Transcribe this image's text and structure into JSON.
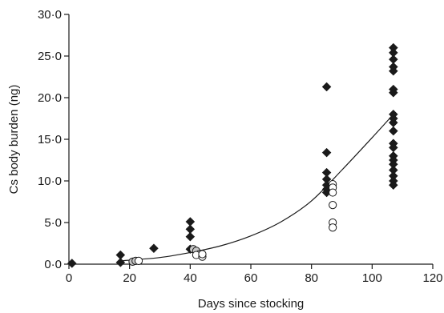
{
  "chart_data": {
    "type": "scatter",
    "xlabel": "Days since stocking",
    "ylabel": "Cs body burden (ng)",
    "xlim": [
      0,
      120
    ],
    "ylim": [
      0,
      30
    ],
    "x_ticks": [
      {
        "value": 0,
        "label": "0"
      },
      {
        "value": 20,
        "label": "20"
      },
      {
        "value": 40,
        "label": "40"
      },
      {
        "value": 60,
        "label": "60"
      },
      {
        "value": 80,
        "label": "80"
      },
      {
        "value": 100,
        "label": "100"
      },
      {
        "value": 120,
        "label": "120"
      }
    ],
    "y_ticks": [
      {
        "value": 0,
        "label": "0·0"
      },
      {
        "value": 5,
        "label": "5·0"
      },
      {
        "value": 10,
        "label": "10·0"
      },
      {
        "value": 15,
        "label": "15·0"
      },
      {
        "value": 20,
        "label": "20·0"
      },
      {
        "value": 25,
        "label": "25·0"
      },
      {
        "value": 30,
        "label": "30·0"
      }
    ],
    "grid": false,
    "series": [
      {
        "marker": "diamond",
        "color": "#1a1a1a",
        "points": [
          [
            1,
            0.1
          ],
          [
            17,
            1.1
          ],
          [
            17,
            0.2
          ],
          [
            28,
            1.9
          ],
          [
            40,
            5.1
          ],
          [
            40,
            4.2
          ],
          [
            40,
            3.3
          ],
          [
            40,
            1.8
          ],
          [
            85,
            21.3
          ],
          [
            85,
            13.4
          ],
          [
            85,
            11.0
          ],
          [
            85,
            10.2
          ],
          [
            85,
            9.5
          ],
          [
            85,
            9.0
          ],
          [
            85,
            8.6
          ],
          [
            107,
            26.0
          ],
          [
            107,
            25.4
          ],
          [
            107,
            24.6
          ],
          [
            107,
            23.7
          ],
          [
            107,
            23.2
          ],
          [
            107,
            21.0
          ],
          [
            107,
            20.6
          ],
          [
            107,
            18.0
          ],
          [
            107,
            17.5
          ],
          [
            107,
            17.0
          ],
          [
            107,
            16.0
          ],
          [
            107,
            14.5
          ],
          [
            107,
            14.0
          ],
          [
            107,
            13.0
          ],
          [
            107,
            12.5
          ],
          [
            107,
            12.0
          ],
          [
            107,
            11.3
          ],
          [
            107,
            10.6
          ],
          [
            107,
            10.0
          ],
          [
            107,
            9.5
          ]
        ]
      },
      {
        "marker": "circle",
        "color": "#c8c8c8",
        "points": [
          [
            21,
            0.3
          ],
          [
            22,
            0.4
          ],
          [
            41,
            1.8
          ],
          [
            42,
            1.6
          ],
          [
            43,
            1.2
          ]
        ]
      },
      {
        "marker": "circle",
        "color": "#ffffff",
        "points": [
          [
            23,
            0.4
          ],
          [
            42,
            1.1
          ],
          [
            44,
            0.9
          ],
          [
            44,
            1.2
          ],
          [
            87,
            9.6
          ],
          [
            87,
            9.2
          ],
          [
            87,
            8.6
          ],
          [
            87,
            7.1
          ],
          [
            87,
            5.0
          ],
          [
            87,
            4.4
          ]
        ]
      }
    ],
    "fit": {
      "type": "exponential",
      "x_start": 17,
      "x_end": 107,
      "points": [
        [
          17,
          0.4
        ],
        [
          30,
          0.8
        ],
        [
          40,
          1.4
        ],
        [
          50,
          2.2
        ],
        [
          60,
          3.4
        ],
        [
          70,
          5.1
        ],
        [
          80,
          7.6
        ],
        [
          90,
          11.3
        ],
        [
          100,
          15.2
        ],
        [
          107,
          18.0
        ]
      ]
    }
  }
}
